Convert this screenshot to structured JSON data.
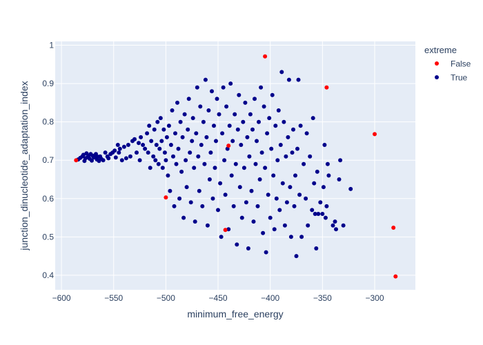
{
  "chart_data": {
    "type": "scatter",
    "title": "",
    "xlabel": "minimum_free_energy",
    "ylabel": "junction_dinucleotide_adaptation_index",
    "xlim": [
      -606,
      -261
    ],
    "ylim": [
      0.362,
      1.01
    ],
    "x_ticks": [
      -600,
      -550,
      -500,
      -450,
      -400,
      -350,
      -300
    ],
    "y_ticks": [
      0.4,
      0.5,
      0.6,
      0.7,
      0.8,
      0.9,
      1
    ],
    "x_tick_labels": [
      "−600",
      "−550",
      "−500",
      "−450",
      "−400",
      "−350",
      "−300"
    ],
    "y_tick_labels": [
      "0.4",
      "0.5",
      "0.6",
      "0.7",
      "0.8",
      "0.9",
      "1"
    ],
    "grid": true,
    "plot_background": "#e5ecf6",
    "legend": {
      "title": "extreme",
      "placement": "right",
      "entries": [
        {
          "label": "False",
          "color": "#ff0000"
        },
        {
          "label": "True",
          "color": "#00008b"
        }
      ]
    },
    "series": [
      {
        "name": "False",
        "color": "#ff0000",
        "points": [
          [
            -586,
            0.7
          ],
          [
            -500,
            0.603
          ],
          [
            -443,
            0.518
          ],
          [
            -440,
            0.738
          ],
          [
            -405,
            0.971
          ],
          [
            -346,
            0.89
          ],
          [
            -300,
            0.768
          ],
          [
            -282,
            0.524
          ],
          [
            -280,
            0.397
          ]
        ]
      },
      {
        "name": "True",
        "color": "#00008b",
        "points": [
          [
            -584,
            0.702
          ],
          [
            -582,
            0.706
          ],
          [
            -580,
            0.71
          ],
          [
            -579,
            0.714
          ],
          [
            -578,
            0.698
          ],
          [
            -577,
            0.705
          ],
          [
            -576,
            0.718
          ],
          [
            -575,
            0.708
          ],
          [
            -574,
            0.711
          ],
          [
            -573,
            0.704
          ],
          [
            -572,
            0.716
          ],
          [
            -571,
            0.699
          ],
          [
            -570,
            0.712
          ],
          [
            -569,
            0.707
          ],
          [
            -568,
            0.71
          ],
          [
            -567,
            0.716
          ],
          [
            -566,
            0.702
          ],
          [
            -565,
            0.709
          ],
          [
            -564,
            0.698
          ],
          [
            -563,
            0.71
          ],
          [
            -562,
            0.704
          ],
          [
            -560,
            0.7
          ],
          [
            -558,
            0.72
          ],
          [
            -556,
            0.71
          ],
          [
            -555,
            0.705
          ],
          [
            -553,
            0.716
          ],
          [
            -551,
            0.72
          ],
          [
            -549,
            0.725
          ],
          [
            -548,
            0.707
          ],
          [
            -546,
            0.74
          ],
          [
            -545,
            0.72
          ],
          [
            -544,
            0.73
          ],
          [
            -542,
            0.7
          ],
          [
            -540,
            0.735
          ],
          [
            -538,
            0.705
          ],
          [
            -536,
            0.74
          ],
          [
            -534,
            0.71
          ],
          [
            -532,
            0.75
          ],
          [
            -530,
            0.755
          ],
          [
            -528,
            0.72
          ],
          [
            -526,
            0.745
          ],
          [
            -525,
            0.7
          ],
          [
            -524,
            0.76
          ],
          [
            -522,
            0.74
          ],
          [
            -520,
            0.73
          ],
          [
            -518,
            0.77
          ],
          [
            -517,
            0.72
          ],
          [
            -516,
            0.79
          ],
          [
            -515,
            0.68
          ],
          [
            -514,
            0.75
          ],
          [
            -512,
            0.71
          ],
          [
            -511,
            0.78
          ],
          [
            -510,
            0.7
          ],
          [
            -509,
            0.74
          ],
          [
            -508,
            0.8
          ],
          [
            -507,
            0.69
          ],
          [
            -506,
            0.73
          ],
          [
            -505,
            0.81
          ],
          [
            -504,
            0.75
          ],
          [
            -503,
            0.68
          ],
          [
            -502,
            0.78
          ],
          [
            -501,
            0.72
          ],
          [
            -500,
            0.7
          ],
          [
            -499,
            0.76
          ],
          [
            -498,
            0.66
          ],
          [
            -497,
            0.79
          ],
          [
            -496,
            0.62
          ],
          [
            -495,
            0.74
          ],
          [
            -494,
            0.83
          ],
          [
            -493,
            0.71
          ],
          [
            -492,
            0.58
          ],
          [
            -491,
            0.77
          ],
          [
            -490,
            0.69
          ],
          [
            -489,
            0.85
          ],
          [
            -488,
            0.73
          ],
          [
            -487,
            0.6
          ],
          [
            -486,
            0.8
          ],
          [
            -485,
            0.67
          ],
          [
            -484,
            0.76
          ],
          [
            -483,
            0.55
          ],
          [
            -482,
            0.82
          ],
          [
            -481,
            0.7
          ],
          [
            -480,
            0.63
          ],
          [
            -479,
            0.78
          ],
          [
            -478,
            0.86
          ],
          [
            -477,
            0.72
          ],
          [
            -476,
            0.59
          ],
          [
            -475,
            0.75
          ],
          [
            -474,
            0.81
          ],
          [
            -473,
            0.68
          ],
          [
            -472,
            0.54
          ],
          [
            -471,
            0.77
          ],
          [
            -470,
            0.89
          ],
          [
            -469,
            0.71
          ],
          [
            -468,
            0.62
          ],
          [
            -467,
            0.84
          ],
          [
            -466,
            0.74
          ],
          [
            -465,
            0.58
          ],
          [
            -464,
            0.8
          ],
          [
            -463,
            0.69
          ],
          [
            -462,
            0.91
          ],
          [
            -461,
            0.76
          ],
          [
            -460,
            0.53
          ],
          [
            -459,
            0.83
          ],
          [
            -458,
            0.65
          ],
          [
            -457,
            0.72
          ],
          [
            -456,
            0.88
          ],
          [
            -455,
            0.6
          ],
          [
            -454,
            0.79
          ],
          [
            -453,
            0.68
          ],
          [
            -452,
            0.75
          ],
          [
            -451,
            0.86
          ],
          [
            -450,
            0.57
          ],
          [
            -449,
            0.82
          ],
          [
            -448,
            0.64
          ],
          [
            -447,
            0.5
          ],
          [
            -446,
            0.77
          ],
          [
            -445,
            0.89
          ],
          [
            -444,
            0.7
          ],
          [
            -443,
            0.61
          ],
          [
            -442,
            0.84
          ],
          [
            -441,
            0.73
          ],
          [
            -440,
            0.52
          ],
          [
            -439,
            0.79
          ],
          [
            -438,
            0.9
          ],
          [
            -437,
            0.66
          ],
          [
            -436,
            0.75
          ],
          [
            -435,
            0.58
          ],
          [
            -434,
            0.82
          ],
          [
            -433,
            0.69
          ],
          [
            -432,
            0.48
          ],
          [
            -431,
            0.78
          ],
          [
            -430,
            0.87
          ],
          [
            -429,
            0.63
          ],
          [
            -428,
            0.74
          ],
          [
            -427,
            0.55
          ],
          [
            -426,
            0.8
          ],
          [
            -425,
            0.68
          ],
          [
            -424,
            0.85
          ],
          [
            -423,
            0.59
          ],
          [
            -422,
            0.76
          ],
          [
            -421,
            0.47
          ],
          [
            -420,
            0.71
          ],
          [
            -419,
            0.82
          ],
          [
            -418,
            0.62
          ],
          [
            -417,
            0.78
          ],
          [
            -416,
            0.54
          ],
          [
            -415,
            0.86
          ],
          [
            -414,
            0.69
          ],
          [
            -413,
            0.75
          ],
          [
            -412,
            0.58
          ],
          [
            -411,
            0.8
          ],
          [
            -410,
            0.65
          ],
          [
            -409,
            0.89
          ],
          [
            -408,
            0.72
          ],
          [
            -407,
            0.51
          ],
          [
            -406,
            0.84
          ],
          [
            -405,
            0.68
          ],
          [
            -404,
            0.46
          ],
          [
            -403,
            0.77
          ],
          [
            -402,
            0.61
          ],
          [
            -401,
            0.81
          ],
          [
            -400,
            0.55
          ],
          [
            -399,
            0.73
          ],
          [
            -398,
            0.87
          ],
          [
            -397,
            0.66
          ],
          [
            -396,
            0.52
          ],
          [
            -395,
            0.79
          ],
          [
            -394,
            0.6
          ],
          [
            -393,
            0.7
          ],
          [
            -392,
            0.83
          ],
          [
            -391,
            0.57
          ],
          [
            -390,
            0.74
          ],
          [
            -389,
            0.93
          ],
          [
            -388,
            0.64
          ],
          [
            -387,
            0.8
          ],
          [
            -386,
            0.53
          ],
          [
            -385,
            0.71
          ],
          [
            -384,
            0.59
          ],
          [
            -383,
            0.76
          ],
          [
            -382,
            0.91
          ],
          [
            -381,
            0.63
          ],
          [
            -380,
            0.5
          ],
          [
            -379,
            0.72
          ],
          [
            -378,
            0.78
          ],
          [
            -377,
            0.58
          ],
          [
            -376,
            0.66
          ],
          [
            -375,
            0.45
          ],
          [
            -374,
            0.73
          ],
          [
            -373,
            0.91
          ],
          [
            -372,
            0.61
          ],
          [
            -371,
            0.79
          ],
          [
            -370,
            0.5
          ],
          [
            -368,
            0.69
          ],
          [
            -366,
            0.6
          ],
          [
            -365,
            0.77
          ],
          [
            -364,
            0.53
          ],
          [
            -362,
            0.71
          ],
          [
            -360,
            0.57
          ],
          [
            -359,
            0.81
          ],
          [
            -358,
            0.64
          ],
          [
            -357,
            0.56
          ],
          [
            -356,
            0.47
          ],
          [
            -355,
            0.67
          ],
          [
            -354,
            0.56
          ],
          [
            -352,
            0.59
          ],
          [
            -350,
            0.56
          ],
          [
            -349,
            0.63
          ],
          [
            -348,
            0.74
          ],
          [
            -347,
            0.55
          ],
          [
            -346,
            0.58
          ],
          [
            -345,
            0.69
          ],
          [
            -344,
            0.66
          ],
          [
            -340,
            0.53
          ],
          [
            -338,
            0.54
          ],
          [
            -337,
            0.52
          ],
          [
            -334,
            0.65
          ],
          [
            -333,
            0.7
          ],
          [
            -330,
            0.53
          ],
          [
            -323,
            0.625
          ]
        ]
      }
    ]
  }
}
